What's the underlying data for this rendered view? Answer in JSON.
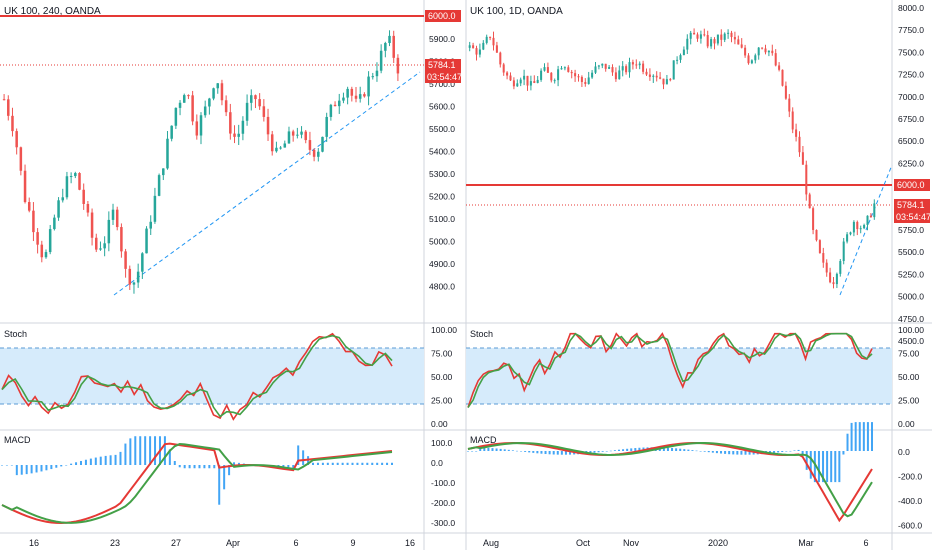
{
  "left_chart": {
    "title": "UK 100, 240, OANDA",
    "price_axis": {
      "ticks": [
        "5900.0",
        "5800.0",
        "5700.0",
        "5600.0",
        "5500.0",
        "5400.0",
        "5300.0",
        "5200.0",
        "5100.0",
        "5000.0",
        "4900.0",
        "4800.0"
      ]
    },
    "tags": {
      "level": "6000.0",
      "last": "5784.1",
      "countdown": "03:54:47"
    },
    "stoch": {
      "label": "Stoch",
      "ticks": [
        "100.00",
        "75.00",
        "50.00",
        "25.00",
        "0.00"
      ]
    },
    "macd": {
      "label": "MACD",
      "ticks": [
        "100.0",
        "0.0",
        "-100.0",
        "-200.0",
        "-300.0"
      ]
    },
    "x_ticks": [
      "16",
      "23",
      "27",
      "Apr",
      "6",
      "9",
      "16"
    ]
  },
  "right_chart": {
    "title": "UK 100, 1D, OANDA",
    "price_axis": {
      "ticks": [
        "8000.0",
        "7750.0",
        "7500.0",
        "7250.0",
        "7000.0",
        "6750.0",
        "6500.0",
        "6250.0",
        "5750.0",
        "5500.0",
        "5250.0",
        "5000.0",
        "4750.0",
        "4500.0"
      ]
    },
    "tags": {
      "level": "6000.0",
      "last": "5784.1",
      "countdown": "03:54:47"
    },
    "stoch": {
      "label": "Stoch",
      "ticks": [
        "100.00",
        "75.00",
        "50.00",
        "25.00",
        "0.00"
      ]
    },
    "macd": {
      "label": "MACD",
      "ticks": [
        "0.0",
        "-200.0",
        "-400.0",
        "-600.0"
      ]
    },
    "x_ticks": [
      "Aug",
      "Oct",
      "Nov",
      "2020",
      "Mar",
      "6"
    ]
  },
  "colors": {
    "up": "#26a69a",
    "down": "#ef5350",
    "level": "#e53935",
    "trend": "#2196f3",
    "stoch_band": "#d6ebfb",
    "macd_hist": "#42a5f5",
    "macd_line": "#e53935",
    "signal_line": "#43a047"
  },
  "chart_data": [
    {
      "type": "candlestick",
      "title": "UK 100, 240, OANDA",
      "ylim": [
        4700,
        6020
      ],
      "level": 6000,
      "last": 5784.1,
      "x_labels": [
        "16",
        "23",
        "27",
        "Apr",
        "6",
        "9",
        "16"
      ],
      "close_path": [
        5640,
        5500,
        5200,
        5050,
        4900,
        5100,
        5250,
        5300,
        5150,
        4950,
        5000,
        5150,
        4850,
        4800,
        5000,
        5200,
        5400,
        5600,
        5700,
        5500,
        5600,
        5760,
        5550,
        5450,
        5600,
        5650,
        5500,
        5380,
        5450,
        5500,
        5420,
        5400,
        5550,
        5650,
        5700,
        5600,
        5720,
        5800,
        5920,
        5784
      ]
    },
    {
      "type": "candlestick",
      "title": "UK 100, 1D, OANDA",
      "ylim": [
        4500,
        8000
      ],
      "level": 6000,
      "last": 5784.1,
      "x_labels": [
        "Aug",
        "Oct",
        "Nov",
        "2020",
        "Mar",
        "6"
      ],
      "close_path": [
        7550,
        7500,
        7700,
        7350,
        7150,
        7250,
        7100,
        7300,
        7200,
        7400,
        7250,
        7150,
        7300,
        7350,
        7250,
        7300,
        7400,
        7300,
        7250,
        7150,
        7450,
        7650,
        7700,
        7600,
        7650,
        7700,
        7550,
        7400,
        7600,
        7500,
        7200,
        6700,
        6300,
        5500,
        5100,
        4900,
        5300,
        5600,
        5500,
        5784
      ]
    }
  ]
}
